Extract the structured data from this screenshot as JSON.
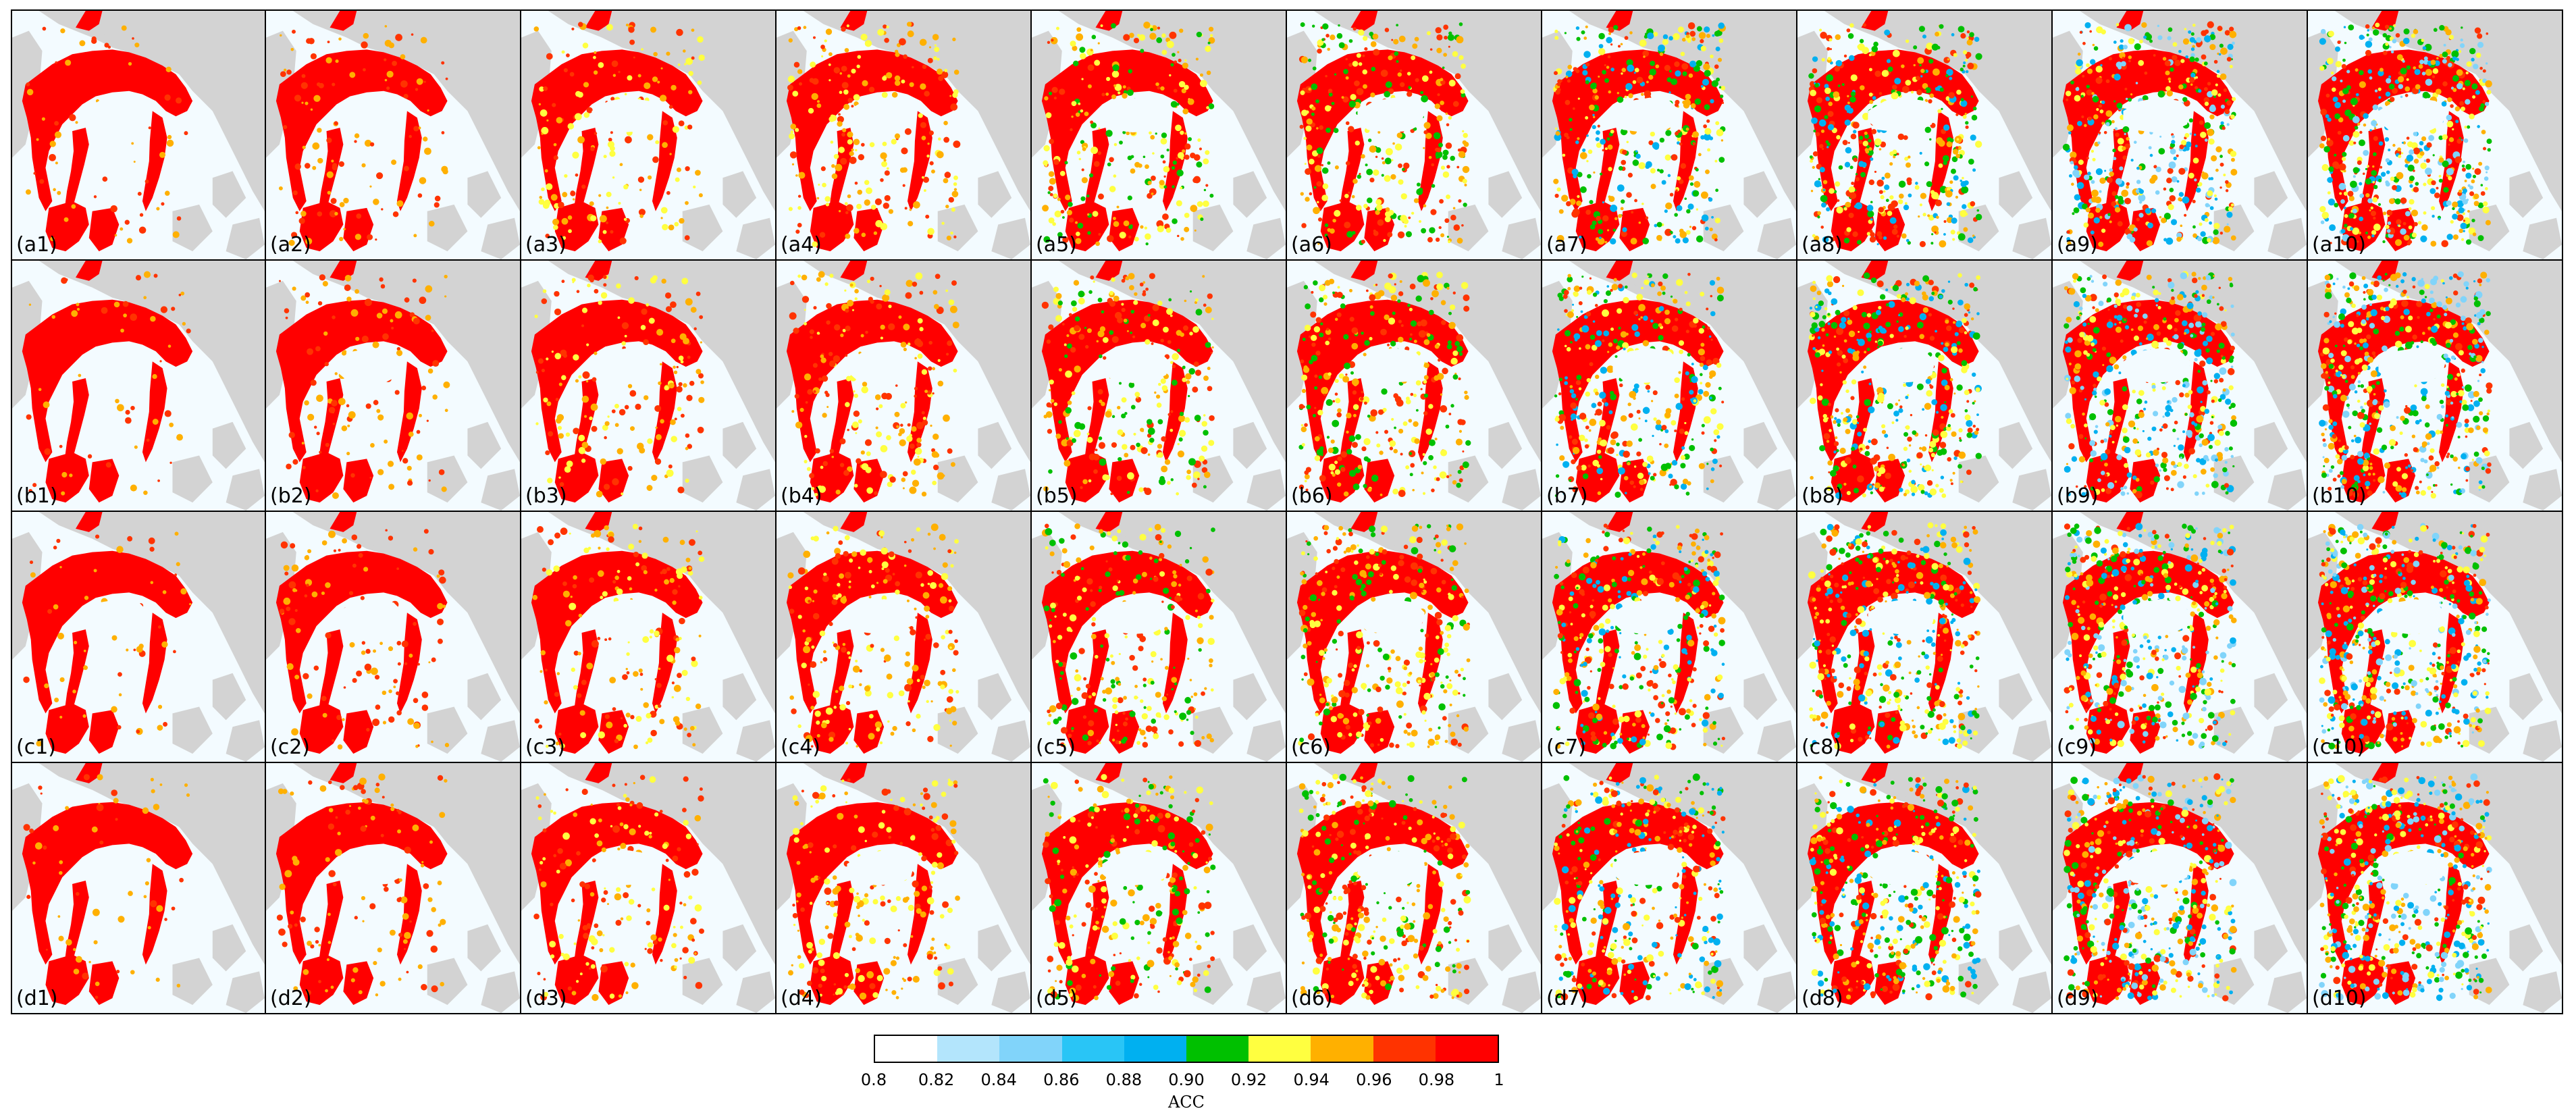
{
  "colors": {
    "land": "#d3d3d3",
    "ocean": "#f3fbff",
    "low_skill": [
      "#b3e5fc",
      "#81d4fa",
      "#29b6f6",
      "#00bfff",
      "#0aa0e0"
    ],
    "green": "#00c000",
    "yellow": "#ffff40",
    "orange": "#ffb000",
    "red_orange": "#ff3300",
    "red": "#ff0000"
  },
  "panels": {
    "rows": [
      {
        "prefix": "a",
        "labels": [
          "(a1)",
          "(a2)",
          "(a3)",
          "(a4)",
          "(a5)",
          "(a6)",
          "(a7)",
          "(a8)",
          "(a9)",
          "(a10)"
        ]
      },
      {
        "prefix": "b",
        "labels": [
          "(b1)",
          "(b2)",
          "(b3)",
          "(b4)",
          "(b5)",
          "(b6)",
          "(b7)",
          "(b8)",
          "(b9)",
          "(b10)"
        ]
      },
      {
        "prefix": "c",
        "labels": [
          "(c1)",
          "(c2)",
          "(c3)",
          "(c4)",
          "(c5)",
          "(c6)",
          "(c7)",
          "(c8)",
          "(c9)",
          "(c10)"
        ]
      },
      {
        "prefix": "d",
        "labels": [
          "(d1)",
          "(d2)",
          "(d3)",
          "(d4)",
          "(d5)",
          "(d6)",
          "(d7)",
          "(d8)",
          "(d9)",
          "(d10)"
        ]
      }
    ]
  },
  "colorbar": {
    "label": "ACC",
    "ticks": [
      "0.8",
      "0.82",
      "0.84",
      "0.86",
      "0.88",
      "0.90",
      "0.92",
      "0.94",
      "0.96",
      "0.98",
      "1"
    ],
    "bins": [
      {
        "color": "#ffffff"
      },
      {
        "color": "#b3e5fc"
      },
      {
        "color": "#81d4fa"
      },
      {
        "color": "#29c5f6"
      },
      {
        "color": "#00b0f0"
      },
      {
        "color": "#00c000"
      },
      {
        "color": "#ffff40"
      },
      {
        "color": "#ffb000"
      },
      {
        "color": "#ff3300"
      },
      {
        "color": "#ff0000"
      }
    ]
  }
}
